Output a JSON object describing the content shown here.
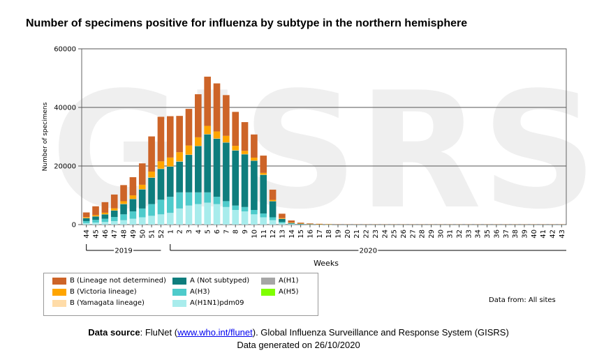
{
  "chart_data": {
    "type": "bar",
    "stacked": true,
    "title": "Number of specimens positive for influenza by subtype in the northern hemisphere",
    "xlabel": "Weeks",
    "ylabel": "Number of specimens",
    "ylim": [
      0,
      60000
    ],
    "yticks": [
      "0",
      "20000",
      "40000",
      "60000"
    ],
    "grid": true,
    "categories": [
      "44",
      "45",
      "46",
      "47",
      "48",
      "49",
      "50",
      "51",
      "52",
      "1",
      "2",
      "3",
      "4",
      "5",
      "6",
      "7",
      "8",
      "9",
      "10",
      "11",
      "12",
      "13",
      "14",
      "15",
      "16",
      "17",
      "18",
      "19",
      "20",
      "21",
      "22",
      "23",
      "24",
      "25",
      "26",
      "27",
      "28",
      "29",
      "30",
      "31",
      "32",
      "33",
      "34",
      "35",
      "36",
      "37",
      "38",
      "39",
      "40",
      "41",
      "42",
      "43"
    ],
    "years": [
      {
        "label": "2019",
        "first": 0,
        "last": 8
      },
      {
        "label": "2020",
        "first": 9,
        "last": 51
      }
    ],
    "series": [
      {
        "name": "A(H1N1)pdm09",
        "color": "#a8ecec",
        "values": [
          500,
          700,
          900,
          1200,
          1500,
          2000,
          2500,
          3000,
          3500,
          4000,
          5500,
          6500,
          7000,
          7500,
          7000,
          6000,
          5000,
          4500,
          3500,
          2500,
          1500,
          500,
          200,
          100,
          50,
          30,
          20,
          0,
          0,
          0,
          0,
          0,
          0,
          0,
          0,
          0,
          0,
          0,
          0,
          0,
          0,
          0,
          0,
          0,
          0,
          0,
          0,
          0,
          0,
          0,
          0,
          0
        ]
      },
      {
        "name": "A(H3)",
        "color": "#4ecbcb",
        "values": [
          700,
          900,
          1100,
          1400,
          2000,
          2500,
          3000,
          4000,
          5000,
          5500,
          5500,
          4500,
          4000,
          3500,
          2500,
          2000,
          1500,
          1500,
          1500,
          1300,
          1000,
          400,
          100,
          50,
          30,
          20,
          10,
          0,
          0,
          0,
          0,
          0,
          0,
          0,
          0,
          0,
          0,
          0,
          0,
          0,
          0,
          0,
          0,
          0,
          0,
          0,
          0,
          0,
          0,
          0,
          0,
          0
        ]
      },
      {
        "name": "A (Not subtyped)",
        "color": "#0e7d7d",
        "values": [
          1000,
          1200,
          1500,
          2200,
          3500,
          4200,
          6500,
          9000,
          10500,
          10300,
          10500,
          12800,
          15800,
          19800,
          19800,
          20000,
          18800,
          18000,
          16800,
          13200,
          5500,
          1100,
          300,
          150,
          80,
          50,
          40,
          30,
          20,
          20,
          20,
          20,
          20,
          20,
          20,
          20,
          20,
          20,
          20,
          20,
          20,
          20,
          20,
          20,
          20,
          20,
          20,
          20,
          20,
          20,
          20,
          20
        ]
      },
      {
        "name": "A(H1)",
        "color": "#a6a6a6",
        "values": [
          0,
          0,
          0,
          0,
          0,
          0,
          0,
          0,
          0,
          0,
          0,
          0,
          0,
          0,
          0,
          0,
          0,
          0,
          0,
          0,
          0,
          0,
          0,
          0,
          0,
          0,
          0,
          0,
          0,
          0,
          0,
          0,
          0,
          0,
          0,
          0,
          0,
          0,
          0,
          0,
          0,
          0,
          0,
          0,
          0,
          0,
          0,
          0,
          0,
          0,
          0,
          0
        ]
      },
      {
        "name": "A(H5)",
        "color": "#7fff00",
        "values": [
          0,
          0,
          0,
          0,
          0,
          0,
          0,
          0,
          0,
          0,
          0,
          0,
          0,
          0,
          0,
          0,
          0,
          0,
          0,
          0,
          0,
          0,
          0,
          0,
          0,
          0,
          0,
          0,
          0,
          0,
          0,
          0,
          0,
          0,
          0,
          0,
          0,
          0,
          0,
          0,
          0,
          0,
          0,
          0,
          0,
          0,
          0,
          0,
          0,
          0,
          0,
          0
        ]
      },
      {
        "name": "B (Yamagata lineage)",
        "color": "#ffdca8",
        "values": [
          50,
          50,
          60,
          60,
          80,
          80,
          100,
          100,
          100,
          100,
          100,
          100,
          100,
          100,
          100,
          100,
          80,
          80,
          60,
          50,
          30,
          20,
          10,
          0,
          0,
          0,
          0,
          0,
          0,
          0,
          0,
          0,
          0,
          0,
          0,
          0,
          0,
          0,
          0,
          0,
          0,
          0,
          0,
          0,
          0,
          0,
          0,
          0,
          0,
          0,
          0,
          0
        ]
      },
      {
        "name": "B (Victoria lineage)",
        "color": "#ffa500",
        "values": [
          300,
          400,
          500,
          700,
          900,
          1200,
          1500,
          2000,
          2500,
          3000,
          3100,
          3100,
          2900,
          2800,
          2400,
          2200,
          1500,
          1100,
          1000,
          600,
          400,
          200,
          100,
          50,
          30,
          20,
          10,
          0,
          0,
          0,
          0,
          0,
          0,
          0,
          0,
          0,
          0,
          0,
          0,
          0,
          0,
          0,
          0,
          0,
          0,
          0,
          0,
          0,
          0,
          0,
          0,
          0
        ]
      },
      {
        "name": "B (Lineage not determined)",
        "color": "#cd6428",
        "values": [
          1600,
          3000,
          3600,
          4700,
          5500,
          6200,
          7300,
          12000,
          15200,
          14100,
          12400,
          12500,
          14700,
          16800,
          16400,
          13900,
          11600,
          9800,
          7900,
          5900,
          3500,
          1500,
          700,
          300,
          200,
          150,
          100,
          100,
          80,
          80,
          60,
          60,
          60,
          60,
          60,
          60,
          60,
          60,
          60,
          60,
          60,
          60,
          60,
          60,
          60,
          60,
          60,
          60,
          80,
          80,
          80,
          80
        ]
      }
    ]
  },
  "legend_items": [
    {
      "name": "B (Lineage not determined)",
      "color": "#cd6428"
    },
    {
      "name": "A (Not subtyped)",
      "color": "#0e7d7d"
    },
    {
      "name": "A(H1)",
      "color": "#a6a6a6"
    },
    {
      "name": "B (Victoria lineage)",
      "color": "#ffa500"
    },
    {
      "name": "A(H3)",
      "color": "#4ecbcb"
    },
    {
      "name": "A(H5)",
      "color": "#7fff00"
    },
    {
      "name": "B (Yamagata lineage)",
      "color": "#ffdca8"
    },
    {
      "name": "A(H1N1)pdm09",
      "color": "#a8ecec"
    }
  ],
  "data_from": "Data from: All sites",
  "source": {
    "label": "Data source",
    "sep": ": FluNet (",
    "link": "www.who.int/flunet",
    "rest": "). Global Influenza Surveillance and Response System (GISRS)",
    "generated": "Data generated on 26/10/2020"
  },
  "watermark": "GISRS"
}
